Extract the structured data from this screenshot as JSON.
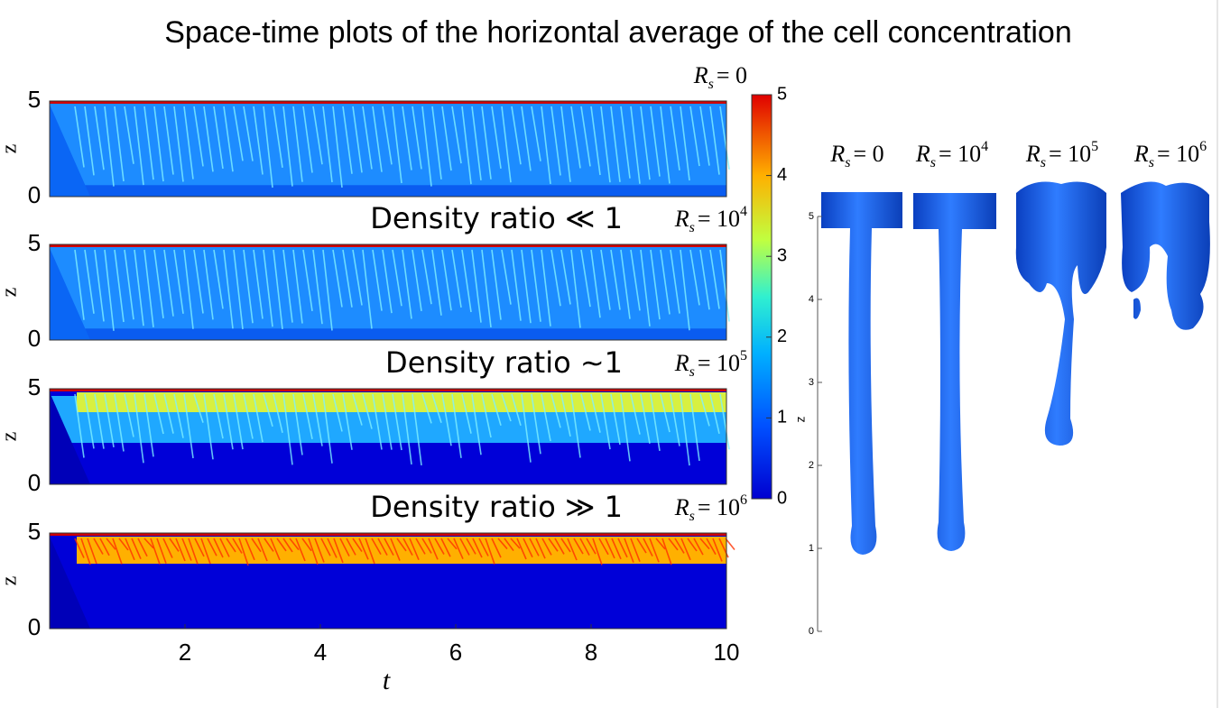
{
  "title": "Space-time plots of the horizontal average of the cell concentration",
  "chart_data": [
    {
      "type": "heatmap",
      "label": {
        "base": "R",
        "sub": "s",
        "eq": "= 0"
      },
      "ylabel": "z",
      "ylim": [
        0,
        5
      ],
      "yticks": [
        0,
        5
      ]
    },
    {
      "type": "heatmap",
      "annotation": "Density ratio ≪ 1",
      "label": {
        "base": "R",
        "sub": "s",
        "eq": "= 10",
        "sup": "4"
      },
      "ylabel": "z",
      "ylim": [
        0,
        5
      ],
      "yticks": [
        0,
        5
      ]
    },
    {
      "type": "heatmap",
      "annotation": "Density ratio ∼1",
      "label": {
        "base": "R",
        "sub": "s",
        "eq": "= 10",
        "sup": "5"
      },
      "ylabel": "z",
      "ylim": [
        0,
        5
      ],
      "yticks": [
        0,
        5
      ]
    },
    {
      "type": "heatmap",
      "annotation": "Density ratio ≫ 1",
      "label": {
        "base": "R",
        "sub": "s",
        "eq": "= 10",
        "sup": "6"
      },
      "ylabel": "z",
      "ylim": [
        0,
        5
      ],
      "yticks": [
        0,
        5
      ],
      "xlim": [
        0,
        10
      ],
      "xticks": [
        2,
        4,
        6,
        8,
        10
      ],
      "xlabel": "t"
    },
    {
      "type": "colorbar",
      "ylim": [
        0,
        5
      ],
      "yticks": [
        0,
        1,
        2,
        3,
        4,
        5
      ]
    },
    {
      "type": "isosurface",
      "ylabel": "z",
      "ylim": [
        0,
        5
      ],
      "yticks": [
        0,
        1,
        2,
        3,
        4,
        5
      ],
      "panels": [
        {
          "base": "R",
          "sub": "s",
          "eq": "= 0"
        },
        {
          "base": "R",
          "sub": "s",
          "eq": "= 10",
          "sup": "4"
        },
        {
          "base": "R",
          "sub": "s",
          "eq": "= 10",
          "sup": "5"
        },
        {
          "base": "R",
          "sub": "s",
          "eq": "= 10",
          "sup": "6"
        }
      ]
    }
  ]
}
